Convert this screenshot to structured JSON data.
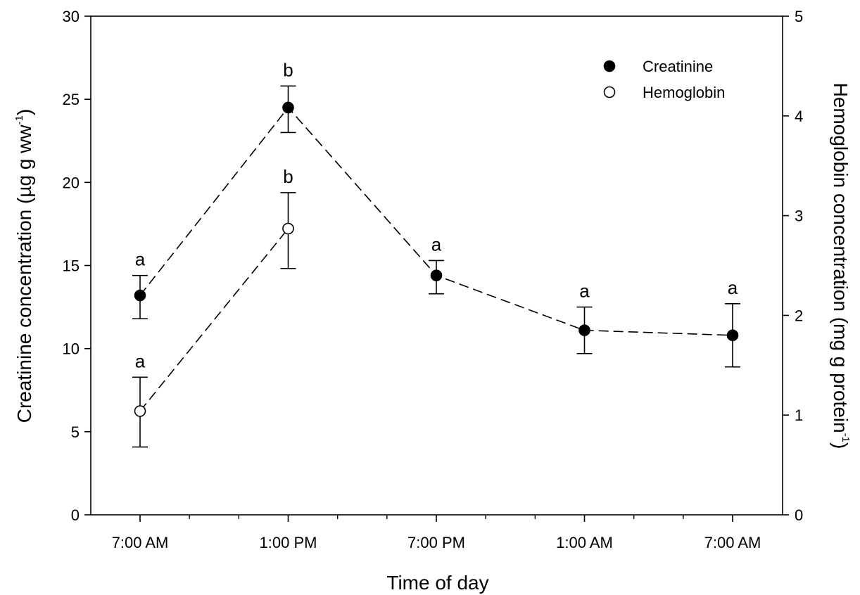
{
  "chart_data": {
    "type": "line",
    "x_categories": [
      "7:00 AM",
      "1:00 PM",
      "7:00 PM",
      "1:00 AM",
      "7:00 AM"
    ],
    "xlabel": "Time of day",
    "ylabel_left": {
      "main": "Creatinine concentration (µg g ww",
      "sup": "-1",
      "close": ")"
    },
    "ylabel_right": {
      "main": "Hemoglobin concentration (mg g protein",
      "sup": "-1",
      "close": ")"
    },
    "ylim_left": [
      0,
      30
    ],
    "ylim_right": [
      0,
      5
    ],
    "yticks_left": [
      "0",
      "5",
      "10",
      "15",
      "20",
      "25",
      "30"
    ],
    "yticks_right": [
      "0",
      "1",
      "2",
      "3",
      "4",
      "5"
    ],
    "legend_position": "top-right",
    "series": [
      {
        "name": "Creatinine",
        "axis": "left",
        "marker": "filled-circle",
        "x_index": [
          0,
          1,
          2,
          3,
          4
        ],
        "values": [
          13.2,
          24.5,
          14.4,
          11.1,
          10.8
        ],
        "err_lower": [
          11.8,
          23.0,
          13.3,
          9.7,
          8.9
        ],
        "err_upper": [
          14.4,
          25.8,
          15.3,
          12.5,
          12.7
        ],
        "labels": [
          "a",
          "b",
          "a",
          "a",
          "a"
        ]
      },
      {
        "name": "Hemoglobin",
        "axis": "right",
        "marker": "open-circle",
        "x_index": [
          0,
          1
        ],
        "values": [
          1.04,
          2.87
        ],
        "err_lower": [
          0.68,
          2.47
        ],
        "err_upper": [
          1.38,
          3.23
        ],
        "labels": [
          "a",
          "b"
        ]
      }
    ]
  }
}
